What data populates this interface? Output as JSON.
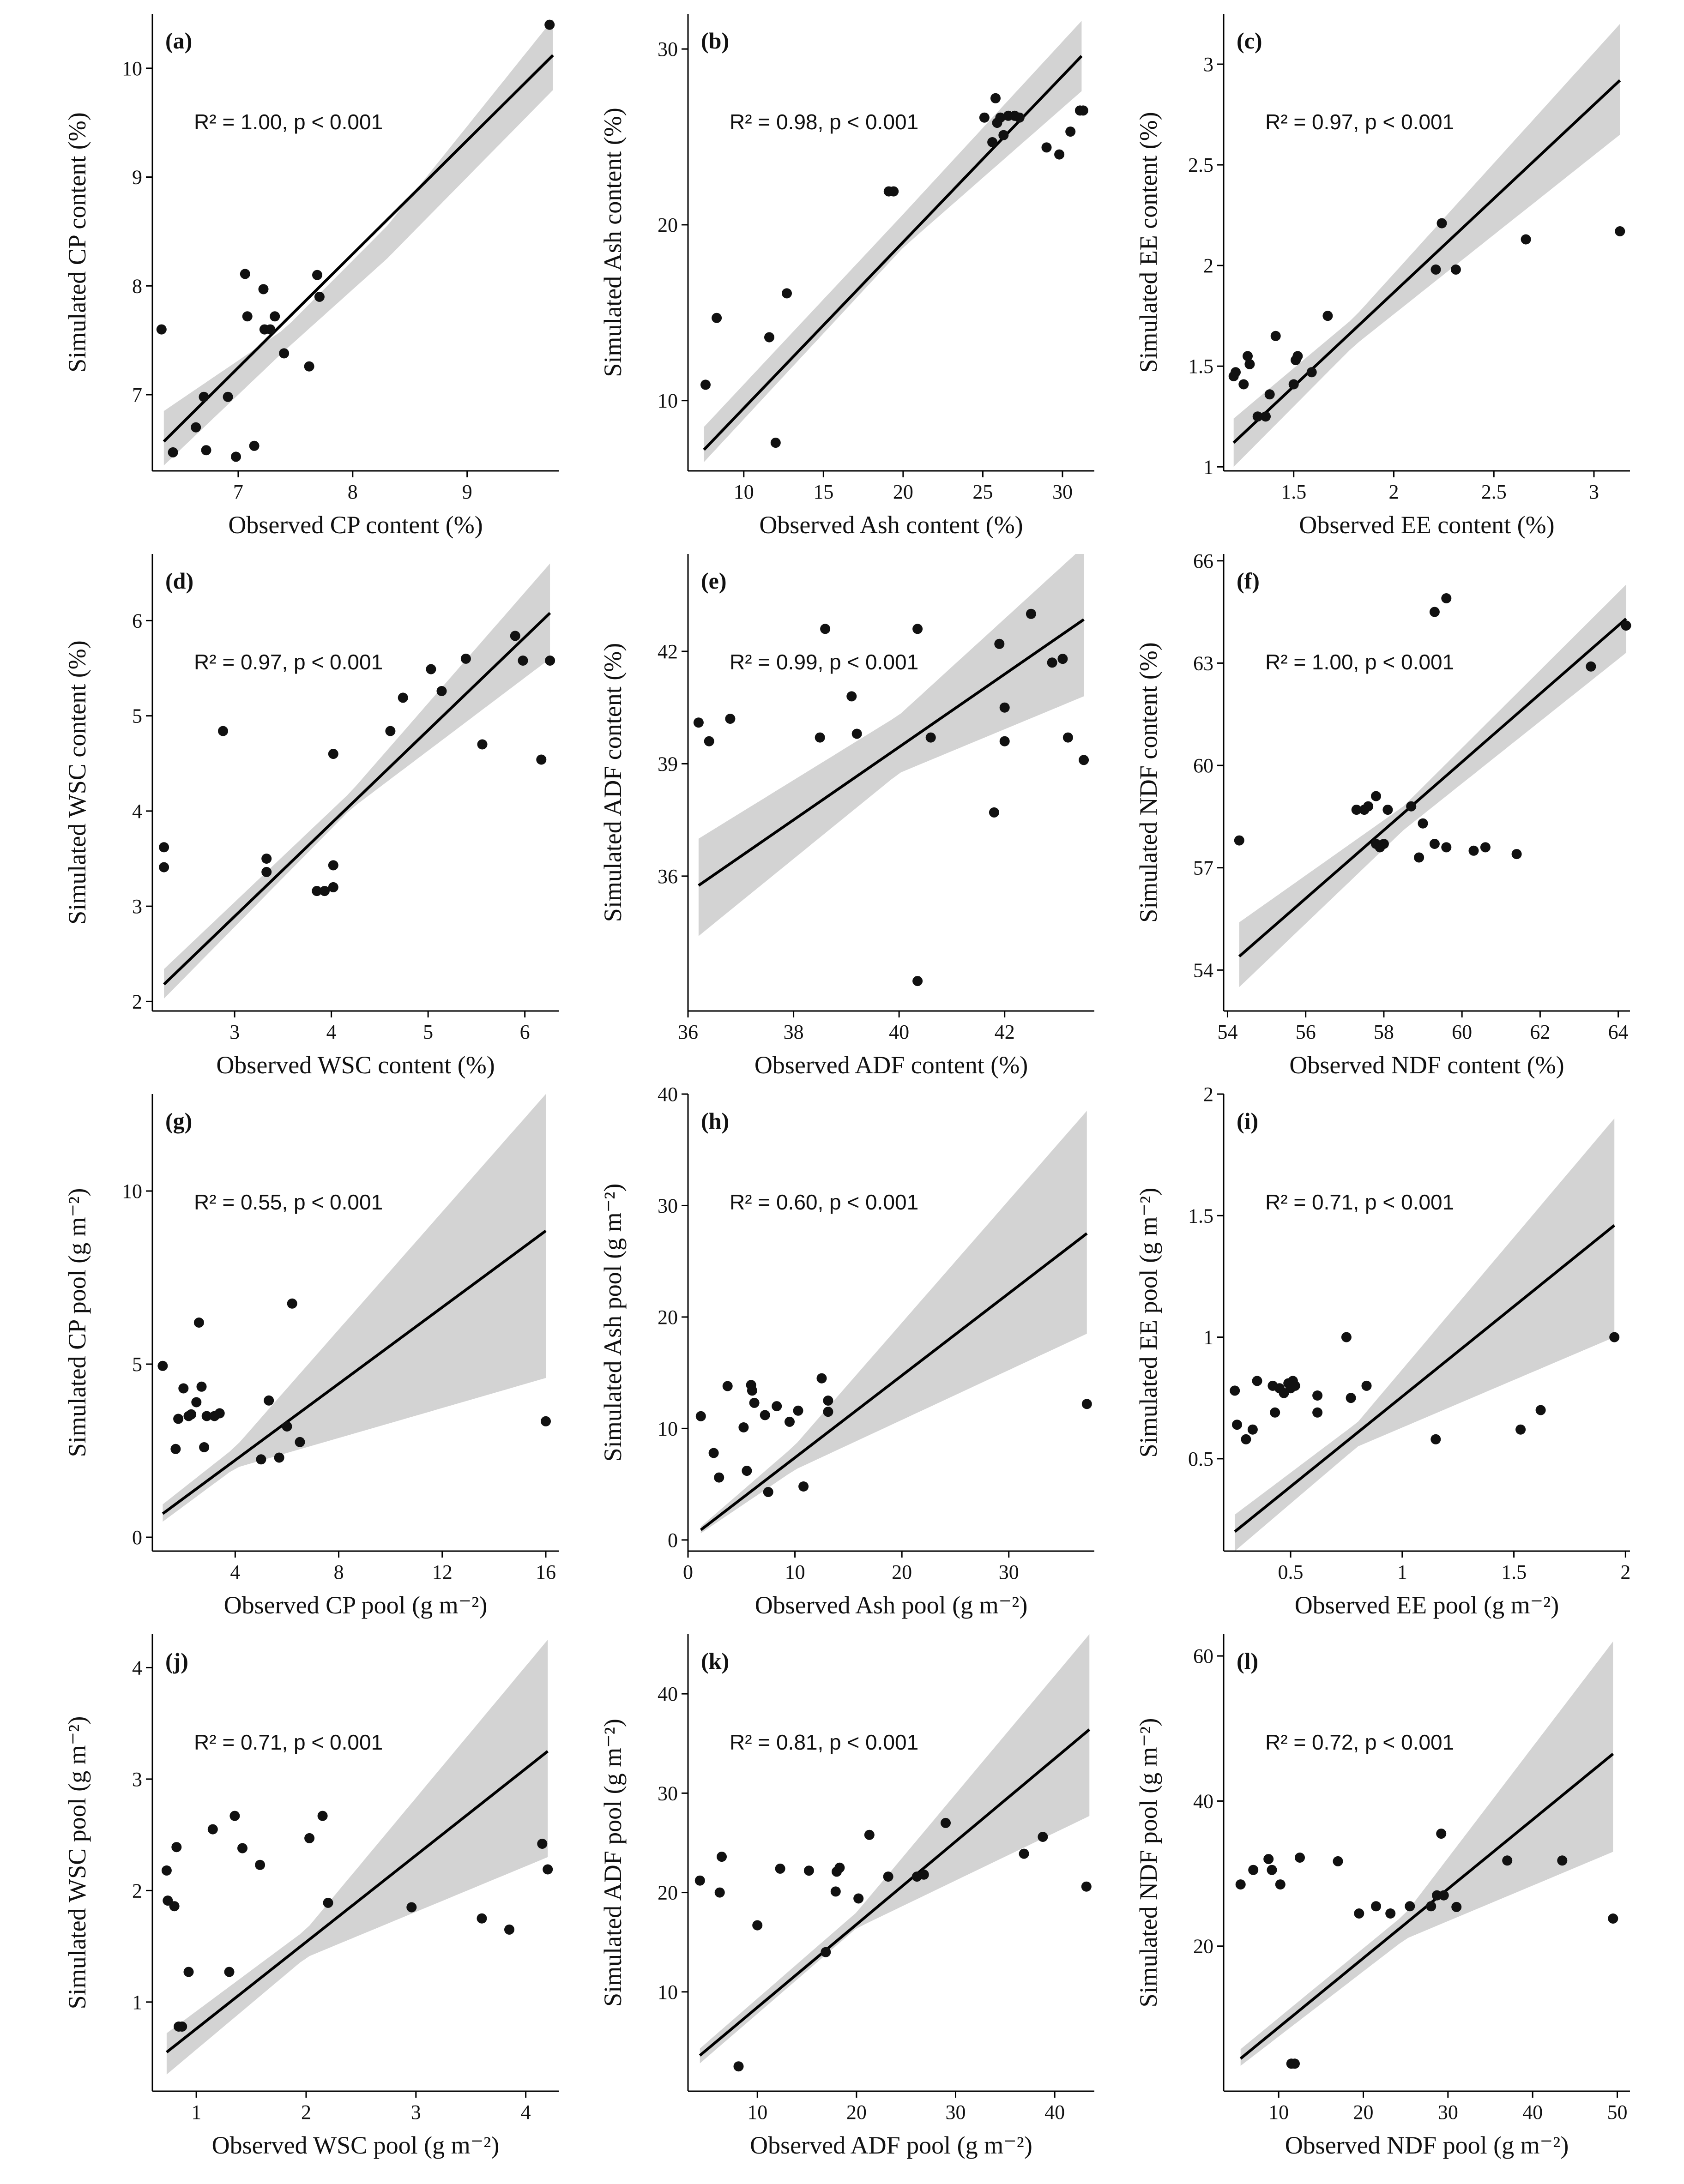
{
  "figure": {
    "colors": {
      "points": "#111111",
      "line": "#000000",
      "band": "#d3d3d3"
    }
  },
  "chart_data": [
    {
      "type": "scatter",
      "panel": "(a)",
      "xlabel": "Observed CP content (%)",
      "ylabel": "Simulated CP content (%)",
      "annotation": "R² = 1.00, p < 0.001",
      "xlim": [
        6.25,
        9.8
      ],
      "ylim": [
        6.3,
        10.5
      ],
      "xticks": [
        7,
        8,
        9
      ],
      "yticks": [
        7,
        8,
        9,
        10
      ],
      "fit": {
        "x": [
          6.35,
          9.75
        ],
        "y": [
          6.57,
          10.12
        ]
      },
      "band": {
        "x": [
          6.35,
          7.4,
          8.3,
          9.75
        ],
        "lower": [
          6.35,
          7.4,
          8.25,
          9.8
        ],
        "upper": [
          6.85,
          7.6,
          8.55,
          10.45
        ]
      },
      "x": [
        6.33,
        6.43,
        6.63,
        6.7,
        6.72,
        6.91,
        6.98,
        7.06,
        7.08,
        7.14,
        7.22,
        7.23,
        7.28,
        7.32,
        7.4,
        7.62,
        7.69,
        7.71,
        9.72
      ],
      "y": [
        7.6,
        6.47,
        6.7,
        6.98,
        6.49,
        6.98,
        6.43,
        8.11,
        7.72,
        6.53,
        7.97,
        7.6,
        7.6,
        7.72,
        7.38,
        7.26,
        8.1,
        7.9,
        10.4
      ]
    },
    {
      "type": "scatter",
      "panel": "(b)",
      "xlabel": "Observed Ash content (%)",
      "ylabel": "Simulated Ash content (%)",
      "annotation": "R² = 0.98, p < 0.001",
      "xlim": [
        6.5,
        32
      ],
      "ylim": [
        6,
        32
      ],
      "xticks": [
        10,
        15,
        20,
        25,
        30
      ],
      "yticks": [
        10,
        20,
        30
      ],
      "fit": {
        "x": [
          7.5,
          31.2
        ],
        "y": [
          7.2,
          29.6
        ]
      },
      "band": {
        "x": [
          7.5,
          20,
          31.2
        ],
        "lower": [
          6.5,
          18.7,
          27.6
        ],
        "upper": [
          8.5,
          20.6,
          31.6
        ]
      },
      "x": [
        7.6,
        8.3,
        11.6,
        12,
        12.7,
        19.1,
        19.4,
        25.1,
        25.6,
        25.8,
        25.9,
        26.1,
        26.3,
        26.6,
        27,
        27.3,
        29,
        29.8,
        30.5,
        31.1,
        31.3
      ],
      "y": [
        10.9,
        14.7,
        13.6,
        7.6,
        16.1,
        21.9,
        21.9,
        26.1,
        24.7,
        27.2,
        25.8,
        26.1,
        25.1,
        26.2,
        26.2,
        26.1,
        24.4,
        24,
        25.3,
        26.5,
        26.5
      ]
    },
    {
      "type": "scatter",
      "panel": "(c)",
      "xlabel": "Observed EE content (%)",
      "ylabel": "Simulated EE content (%)",
      "annotation": "R² = 0.97, p < 0.001",
      "xlim": [
        1.15,
        3.18
      ],
      "ylim": [
        0.98,
        3.25
      ],
      "xticks": [
        1.5,
        2,
        2.5,
        3
      ],
      "yticks": [
        1,
        1.5,
        2,
        2.5,
        3
      ],
      "fit": {
        "x": [
          1.2,
          3.13
        ],
        "y": [
          1.12,
          2.92
        ]
      },
      "band": {
        "x": [
          1.2,
          1.8,
          3.13
        ],
        "lower": [
          1.0,
          1.6,
          2.65
        ],
        "upper": [
          1.24,
          1.74,
          3.2
        ]
      },
      "x": [
        1.2,
        1.21,
        1.25,
        1.27,
        1.28,
        1.32,
        1.36,
        1.38,
        1.41,
        1.5,
        1.51,
        1.52,
        1.59,
        1.67,
        2.21,
        2.24,
        2.31,
        2.66,
        3.13
      ],
      "y": [
        1.45,
        1.47,
        1.41,
        1.55,
        1.51,
        1.25,
        1.25,
        1.36,
        1.65,
        1.41,
        1.53,
        1.55,
        1.47,
        1.75,
        1.98,
        2.21,
        1.98,
        2.13,
        2.17
      ]
    },
    {
      "type": "scatter",
      "panel": "(d)",
      "xlabel": "Observed WSC content (%)",
      "ylabel": "Simulated WSC content (%)",
      "annotation": "R² = 0.97, p < 0.001",
      "xlim": [
        2.15,
        6.35
      ],
      "ylim": [
        1.9,
        6.7
      ],
      "xticks": [
        3,
        4,
        5,
        6
      ],
      "yticks": [
        2,
        3,
        4,
        5,
        6
      ],
      "fit": {
        "x": [
          2.27,
          6.26
        ],
        "y": [
          2.18,
          6.08
        ]
      },
      "band": {
        "x": [
          2.27,
          4.2,
          6.26
        ],
        "lower": [
          2.03,
          4.02,
          5.6
        ],
        "upper": [
          2.34,
          4.2,
          6.6
        ]
      },
      "x": [
        2.27,
        2.27,
        2.88,
        3.33,
        3.33,
        3.85,
        3.93,
        4.02,
        4.02,
        4.02,
        4.61,
        4.74,
        5.03,
        5.14,
        5.39,
        5.56,
        5.9,
        5.98,
        6.17,
        6.26
      ],
      "y": [
        3.62,
        3.41,
        4.84,
        3.5,
        3.36,
        3.16,
        3.16,
        3.43,
        3.2,
        4.6,
        4.84,
        5.19,
        5.49,
        5.26,
        5.6,
        4.7,
        5.84,
        5.58,
        4.54,
        5.58
      ]
    },
    {
      "type": "scatter",
      "panel": "(e)",
      "xlabel": "Observed ADF content (%)",
      "ylabel": "Simulated ADF content (%)",
      "annotation": "R² = 0.99, p < 0.001",
      "xlim": [
        36,
        43.7
      ],
      "ylim": [
        32.4,
        44.6
      ],
      "xticks": [
        36,
        38,
        40,
        42
      ],
      "yticks": [
        36,
        39,
        42
      ],
      "fit": {
        "x": [
          36.2,
          43.5
        ],
        "y": [
          35.75,
          42.85
        ]
      },
      "band": {
        "x": [
          36.2,
          40,
          43.5
        ],
        "lower": [
          34.4,
          38.75,
          40.8
        ],
        "upper": [
          37.0,
          40.3,
          44.8
        ]
      },
      "x": [
        36.2,
        36.4,
        36.8,
        38.5,
        38.6,
        39.1,
        39.2,
        40.35,
        40.6,
        41.8,
        41.9,
        42,
        42,
        42.5,
        42.9,
        43.1,
        43.2,
        43.5,
        40.35
      ],
      "y": [
        40.1,
        39.6,
        40.2,
        39.7,
        42.6,
        40.8,
        39.8,
        42.6,
        39.7,
        37.7,
        42.2,
        39.6,
        40.5,
        43,
        41.7,
        41.8,
        39.7,
        39.1,
        33.2
      ]
    },
    {
      "type": "scatter",
      "panel": "(f)",
      "xlabel": "Observed NDF content (%)",
      "ylabel": "Simulated NDF content (%)",
      "annotation": "R² = 1.00, p < 0.001",
      "xlim": [
        53.9,
        64.3
      ],
      "ylim": [
        52.8,
        66.2
      ],
      "xticks": [
        54,
        56,
        58,
        60,
        62,
        64
      ],
      "yticks": [
        54,
        57,
        60,
        63,
        66
      ],
      "fit": {
        "x": [
          54.3,
          64.2
        ],
        "y": [
          54.4,
          64.3
        ]
      },
      "band": {
        "x": [
          54.3,
          58.5,
          64.2
        ],
        "lower": [
          53.5,
          58.1,
          63.3
        ],
        "upper": [
          55.4,
          58.8,
          65.3
        ]
      },
      "x": [
        54.3,
        57.3,
        57.5,
        57.6,
        57.8,
        57.8,
        57.9,
        58,
        58.1,
        58.7,
        58.9,
        59,
        59.3,
        59.3,
        59.6,
        59.6,
        60.3,
        60.6,
        61.4,
        63.3,
        64.2
      ],
      "y": [
        57.8,
        58.7,
        58.7,
        58.8,
        57.7,
        59.1,
        57.6,
        57.7,
        58.7,
        58.8,
        57.3,
        58.3,
        57.7,
        64.5,
        64.9,
        57.6,
        57.5,
        57.6,
        57.4,
        62.9,
        64.1
      ]
    },
    {
      "type": "scatter",
      "panel": "(g)",
      "xlabel": "Observed CP pool (g m⁻²)",
      "ylabel": "Simulated CP pool (g m⁻²)",
      "annotation": "R² = 0.55, p < 0.001",
      "xlim": [
        0.8,
        16.5
      ],
      "ylim": [
        -0.4,
        12.8
      ],
      "xticks": [
        4,
        8,
        12,
        16
      ],
      "yticks": [
        0,
        5,
        10
      ],
      "fit": {
        "x": [
          1.2,
          16
        ],
        "y": [
          0.68,
          8.85
        ]
      },
      "band": {
        "x": [
          1.2,
          4,
          16
        ],
        "lower": [
          0.45,
          2.0,
          4.6
        ],
        "upper": [
          0.95,
          2.6,
          12.8
        ]
      },
      "x": [
        1.2,
        1.7,
        1.8,
        2,
        2.2,
        2.3,
        2.5,
        2.6,
        2.7,
        2.8,
        2.9,
        3.2,
        3.4,
        5,
        5.3,
        5.7,
        6,
        6.2,
        6.5,
        16
      ],
      "y": [
        4.95,
        2.55,
        3.42,
        4.3,
        3.5,
        3.55,
        3.9,
        6.2,
        4.35,
        2.6,
        3.5,
        3.5,
        3.58,
        2.25,
        3.95,
        2.3,
        3.2,
        6.75,
        2.75,
        3.35
      ]
    },
    {
      "type": "scatter",
      "panel": "(h)",
      "xlabel": "Observed Ash pool (g m⁻²)",
      "ylabel": "Simulated Ash pool (g m⁻²)",
      "annotation": "R² = 0.60, p < 0.001",
      "xlim": [
        0,
        38
      ],
      "ylim": [
        -1,
        40
      ],
      "xticks": [
        0,
        10,
        20,
        30
      ],
      "yticks": [
        0,
        10,
        20,
        30,
        40
      ],
      "fit": {
        "x": [
          1.2,
          37.3
        ],
        "y": [
          0.9,
          27.5
        ]
      },
      "band": {
        "x": [
          1.2,
          10,
          37.3
        ],
        "lower": [
          0.6,
          6.3,
          18.5
        ],
        "upper": [
          1.2,
          8.5,
          38.5
        ]
      },
      "x": [
        1.2,
        2.4,
        2.9,
        3.7,
        5.2,
        5.5,
        5.9,
        6,
        6.2,
        7.2,
        7.5,
        8.3,
        9.5,
        10.3,
        10.8,
        12.5,
        13.1,
        13.1,
        37.3
      ],
      "y": [
        11.1,
        7.8,
        5.6,
        13.8,
        10.1,
        6.2,
        13.9,
        13.4,
        12.3,
        11.2,
        4.3,
        12,
        10.6,
        11.6,
        4.8,
        14.5,
        12.5,
        11.5,
        12.2
      ]
    },
    {
      "type": "scatter",
      "panel": "(i)",
      "xlabel": "Observed EE pool (g m⁻²)",
      "ylabel": "Simulated EE pool (g m⁻²)",
      "annotation": "R² = 0.71, p < 0.001",
      "xlim": [
        0.2,
        2.02
      ],
      "ylim": [
        0.12,
        2.0
      ],
      "xticks": [
        0.5,
        1,
        1.5,
        2
      ],
      "yticks": [
        0.5,
        1,
        1.5,
        2
      ],
      "fit": {
        "x": [
          0.25,
          1.95
        ],
        "y": [
          0.2,
          1.46
        ]
      },
      "band": {
        "x": [
          0.25,
          0.8,
          1.95
        ],
        "lower": [
          0.12,
          0.55,
          1.0
        ],
        "upper": [
          0.27,
          0.65,
          1.9
        ]
      },
      "x": [
        0.25,
        0.26,
        0.3,
        0.33,
        0.35,
        0.42,
        0.43,
        0.45,
        0.47,
        0.49,
        0.5,
        0.51,
        0.52,
        0.62,
        0.62,
        0.75,
        0.77,
        0.84,
        1.15,
        1.53,
        1.62,
        1.95
      ],
      "y": [
        0.78,
        0.64,
        0.58,
        0.62,
        0.82,
        0.8,
        0.69,
        0.79,
        0.77,
        0.81,
        0.79,
        0.82,
        0.8,
        0.69,
        0.76,
        1.0,
        0.75,
        0.8,
        0.58,
        0.62,
        0.7,
        1.0
      ]
    },
    {
      "type": "scatter",
      "panel": "(j)",
      "xlabel": "Observed WSC pool (g m⁻²)",
      "ylabel": "Simulated WSC pool (g m⁻²)",
      "annotation": "R² = 0.71, p < 0.001",
      "xlim": [
        0.6,
        4.3
      ],
      "ylim": [
        0.2,
        4.3
      ],
      "xticks": [
        1,
        2,
        3,
        4
      ],
      "yticks": [
        1,
        2,
        3,
        4
      ],
      "fit": {
        "x": [
          0.73,
          4.2
        ],
        "y": [
          0.55,
          3.25
        ]
      },
      "band": {
        "x": [
          0.73,
          2,
          4.2
        ],
        "lower": [
          0.35,
          1.4,
          2.3
        ],
        "upper": [
          0.72,
          1.65,
          4.25
        ]
      },
      "x": [
        0.73,
        0.74,
        0.8,
        0.82,
        0.84,
        0.87,
        0.93,
        1.15,
        1.3,
        1.35,
        1.42,
        1.58,
        2.03,
        2.15,
        2.2,
        2.96,
        3.6,
        3.85,
        4.15,
        4.2
      ],
      "y": [
        2.18,
        1.91,
        1.86,
        2.39,
        0.78,
        0.78,
        1.27,
        2.55,
        1.27,
        2.67,
        2.38,
        2.23,
        2.47,
        2.67,
        1.89,
        1.85,
        1.75,
        1.65,
        2.42,
        2.19
      ]
    },
    {
      "type": "scatter",
      "panel": "(k)",
      "xlabel": "Observed ADF pool (g m⁻²)",
      "ylabel": "Simulated ADF pool (g m⁻²)",
      "annotation": "R² = 0.81, p < 0.001",
      "xlim": [
        3,
        44
      ],
      "ylim": [
        0,
        46
      ],
      "xticks": [
        10,
        20,
        30,
        40
      ],
      "yticks": [
        10,
        20,
        30,
        40
      ],
      "fit": {
        "x": [
          4.2,
          43.5
        ],
        "y": [
          3.6,
          36.4
        ]
      },
      "band": {
        "x": [
          4.2,
          20,
          43.5
        ],
        "lower": [
          2.8,
          16.4,
          27.7
        ],
        "upper": [
          4.3,
          18.0,
          46
        ]
      },
      "x": [
        4.2,
        6.2,
        6.4,
        8.1,
        10,
        12.3,
        15.2,
        16.9,
        17.9,
        18,
        18.3,
        20.2,
        21.3,
        23.2,
        26.1,
        26.8,
        29,
        36.9,
        38.8,
        43.2
      ],
      "y": [
        21.2,
        20,
        23.6,
        2.5,
        16.7,
        22.4,
        22.2,
        14,
        20.1,
        22.1,
        22.5,
        19.4,
        25.8,
        21.6,
        21.6,
        21.8,
        27,
        23.9,
        25.6,
        20.6
      ]
    },
    {
      "type": "scatter",
      "panel": "(l)",
      "xlabel": "Observed NDF pool (g m⁻²)",
      "ylabel": "Simulated NDF pool (g m⁻²)",
      "annotation": "R² = 0.72, p < 0.001",
      "xlim": [
        3.5,
        51.5
      ],
      "ylim": [
        0,
        63
      ],
      "xticks": [
        10,
        20,
        30,
        40,
        50
      ],
      "yticks": [
        20,
        40,
        60
      ],
      "fit": {
        "x": [
          5.5,
          49.5
        ],
        "y": [
          4.5,
          46.5
        ]
      },
      "band": {
        "x": [
          5.5,
          25,
          49.5
        ],
        "lower": [
          3.5,
          21,
          33
        ],
        "upper": [
          5.8,
          24.5,
          62
        ]
      },
      "x": [
        5.5,
        7,
        8.8,
        9.2,
        10.2,
        11.5,
        11.9,
        12.5,
        17,
        19.5,
        21.5,
        23.2,
        25.5,
        28,
        28.7,
        29.2,
        29.5,
        31,
        37,
        43.5,
        49.5
      ],
      "y": [
        28.5,
        30.5,
        32,
        30.5,
        28.5,
        3.8,
        3.8,
        32.2,
        31.7,
        24.5,
        25.5,
        24.5,
        25.5,
        25.5,
        27,
        35.5,
        27,
        25.4,
        31.8,
        31.8,
        23.8
      ]
    }
  ]
}
